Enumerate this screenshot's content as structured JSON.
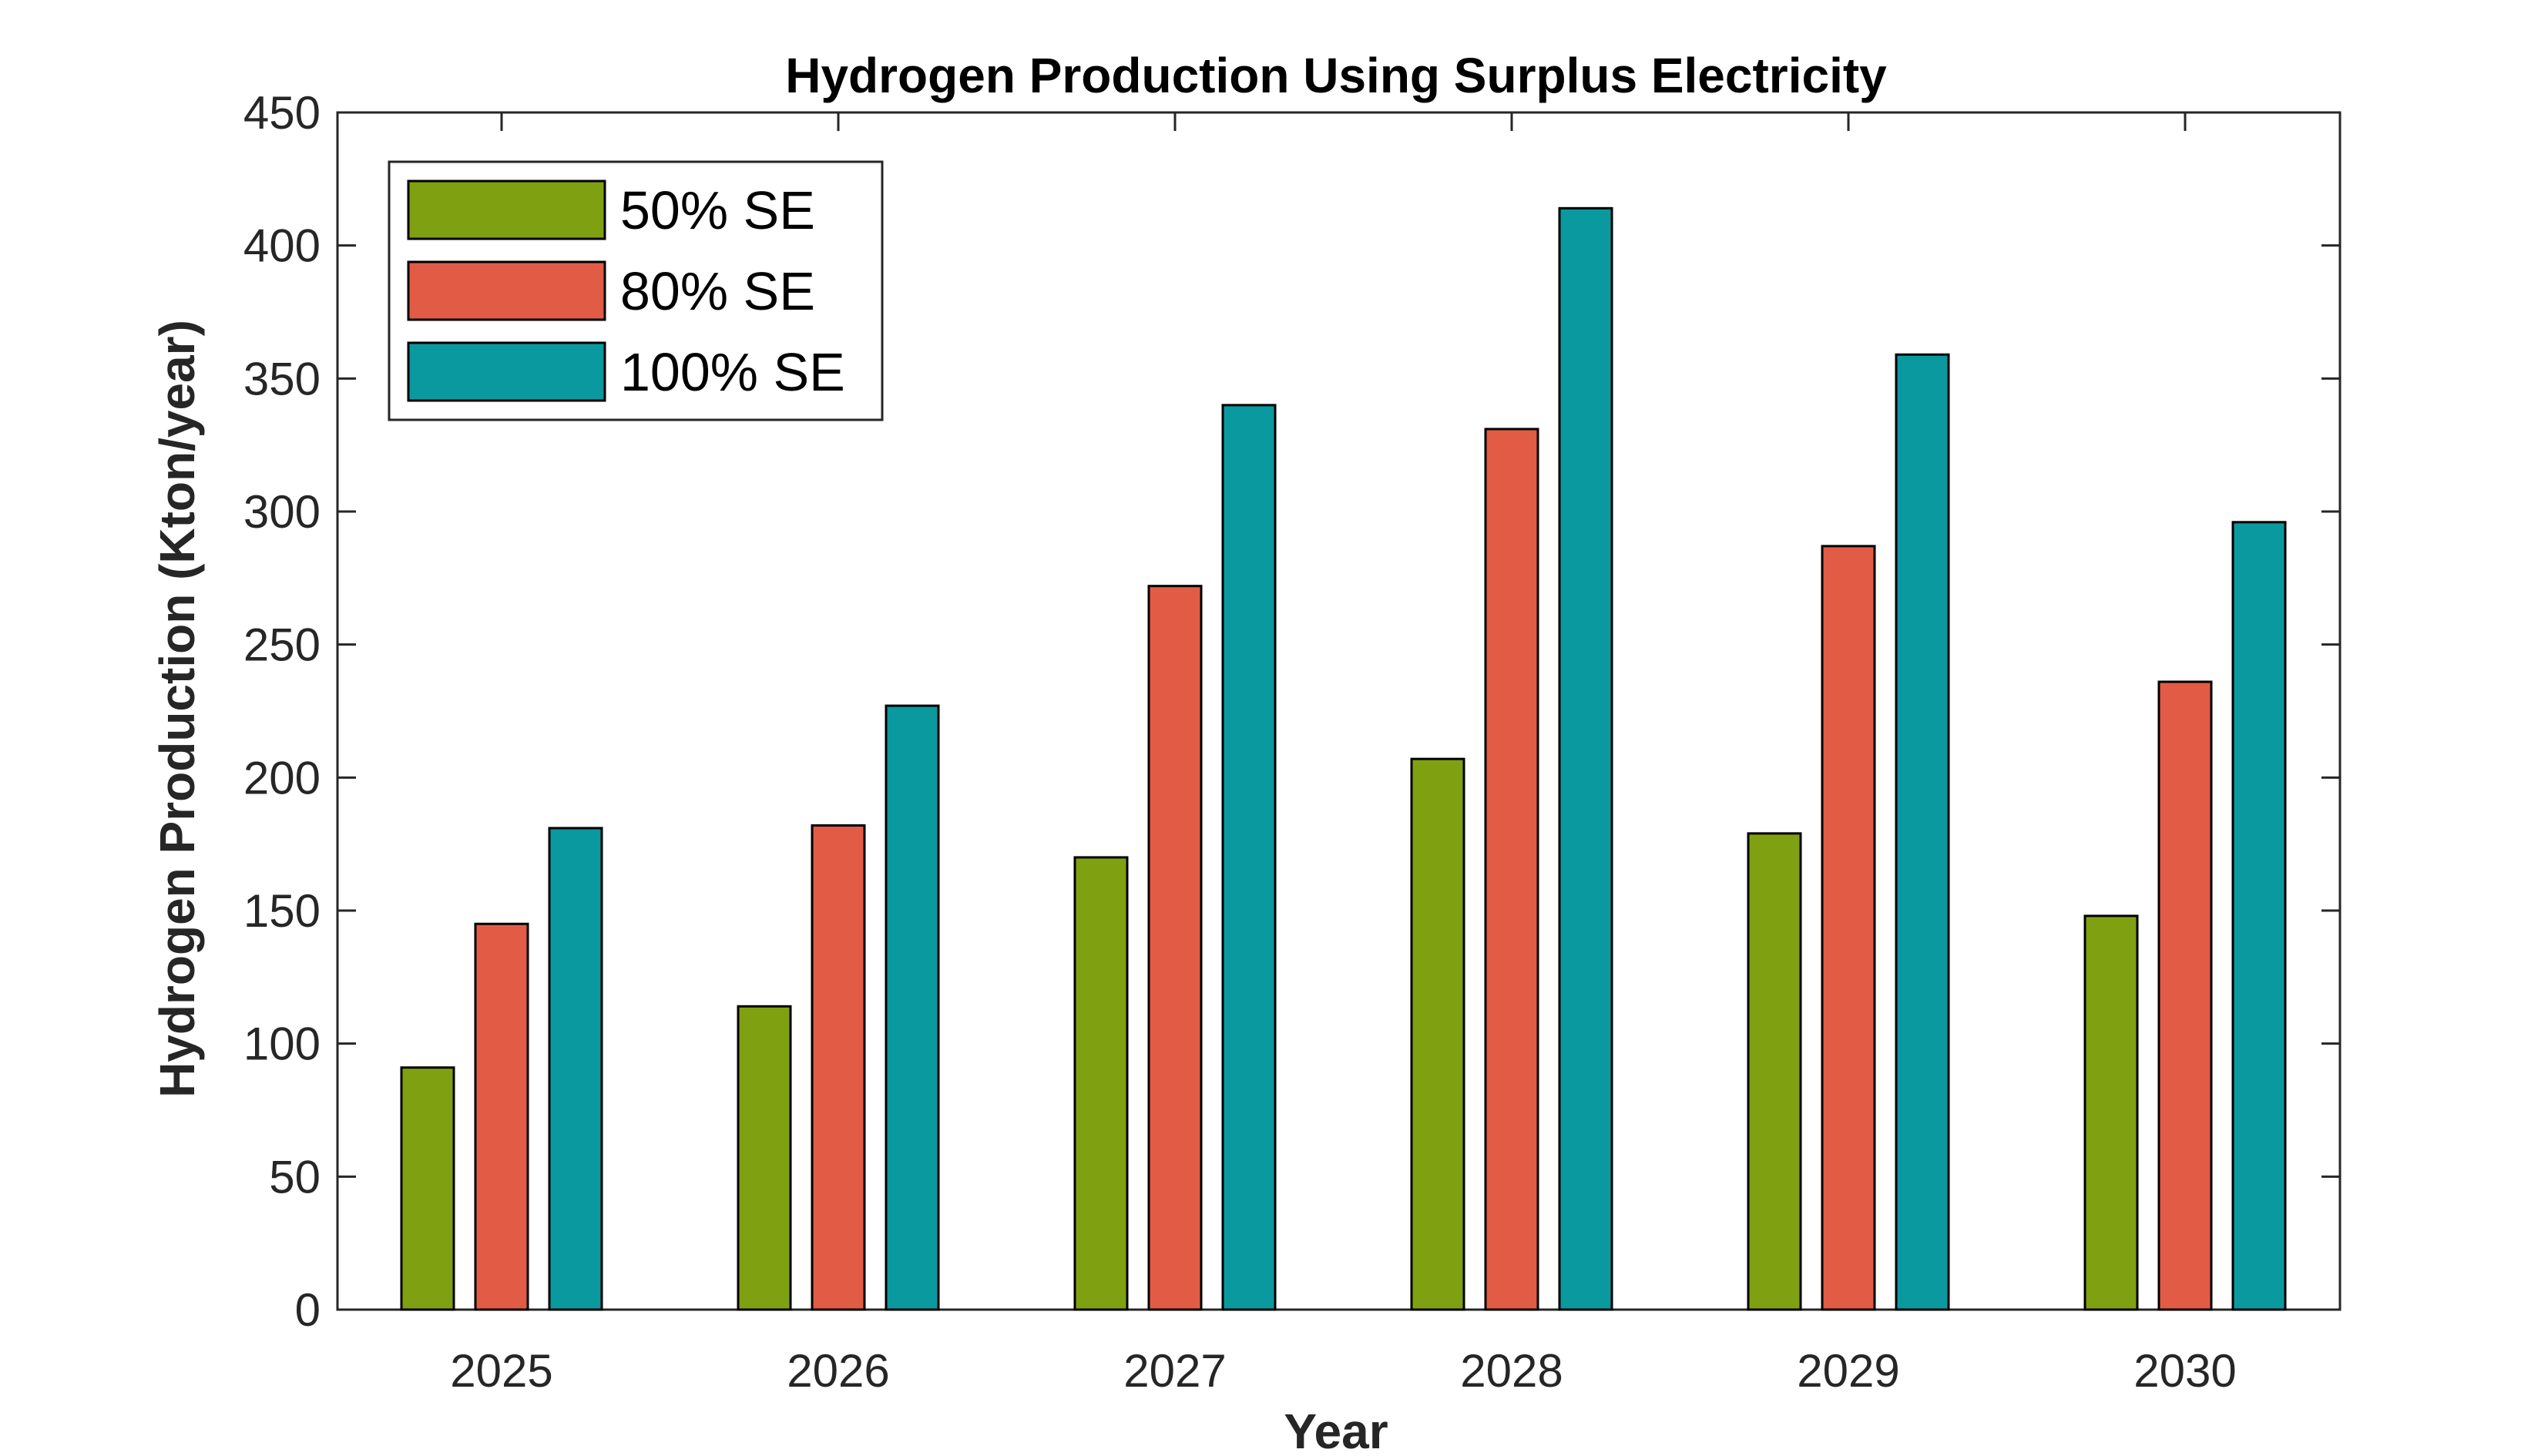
{
  "chart_data": {
    "type": "bar",
    "title": "Hydrogen Production Using Surplus Electricity",
    "xlabel": "Year",
    "ylabel": "Hydrogen Production (Kton/year)",
    "categories": [
      "2025",
      "2026",
      "2027",
      "2028",
      "2029",
      "2030"
    ],
    "series": [
      {
        "name": "50% SE",
        "color": "#7fa111",
        "values": [
          91,
          114,
          170,
          207,
          179,
          148
        ]
      },
      {
        "name": "80% SE",
        "color": "#e25b45",
        "values": [
          145,
          182,
          272,
          331,
          287,
          236
        ]
      },
      {
        "name": "100% SE",
        "color": "#0a999e",
        "values": [
          181,
          227,
          340,
          414,
          359,
          296
        ]
      }
    ],
    "ylim": [
      0,
      450
    ],
    "yticks": [
      0,
      50,
      100,
      150,
      200,
      250,
      300,
      350,
      400,
      450
    ],
    "legend_position": "top-left",
    "grid": false
  }
}
